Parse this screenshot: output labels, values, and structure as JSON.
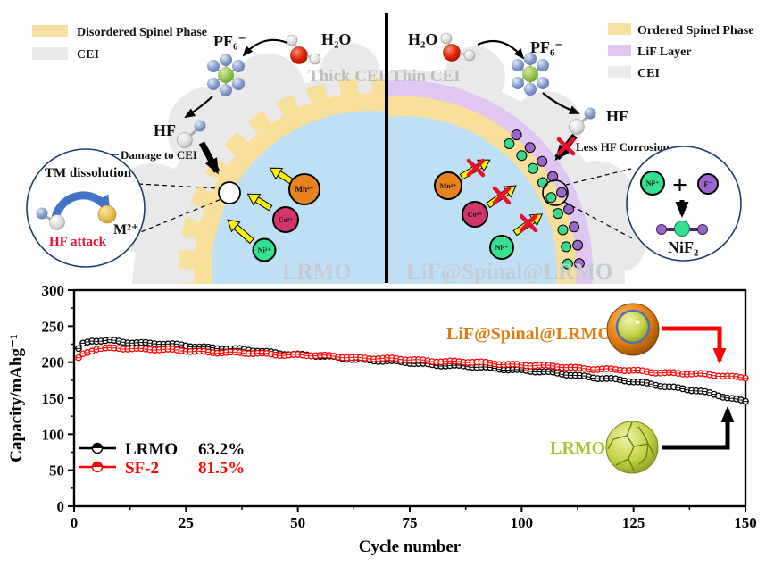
{
  "diagram": {
    "left_legend": {
      "items": [
        {
          "label": "Disordered Spinel Phase",
          "color": "#F7E1A0"
        },
        {
          "label": "CEI",
          "color": "#EAEAEA"
        }
      ]
    },
    "right_legend": {
      "items": [
        {
          "label": "Ordered Spinel Phase",
          "color": "#F7E1A0"
        },
        {
          "label": "LiF Layer",
          "color": "#DFC7F2"
        },
        {
          "label": "CEI",
          "color": "#EAEAEA"
        }
      ]
    },
    "labels": {
      "pf6": "PF₆⁻",
      "h2o": "H₂O",
      "hf": "HF",
      "thick_cei": "Thick CEI",
      "thin_cei": "Thin CEI",
      "damage_to_cei": "Damage to CEI",
      "tm_dissolution": "TM dissolution",
      "hf_attack": "HF attack",
      "m2plus": "M²⁺",
      "less_hf_corrosion": "Less HF Corrosion",
      "core_left": "LRMO",
      "core_right": "LiF@Spinal@LRMO",
      "plus": "+",
      "nif2": "NiF₂"
    },
    "ions": {
      "mn": "Mn⁴⁺",
      "co": "Co³⁺",
      "ni": "Ni²⁺",
      "f": "F⁻"
    },
    "colors": {
      "core_blue": "#BFE0F4",
      "mn_orange": "#E8821E",
      "co_pink": "#D2356A",
      "ni_green": "#35E08E",
      "f_purple": "#9966CC"
    }
  },
  "chart_data": {
    "type": "line",
    "xlabel": "Cycle number",
    "ylabel": "Capacity/mAhg⁻¹",
    "xlim": [
      0,
      150
    ],
    "ylim": [
      0,
      300
    ],
    "xticks": [
      0,
      25,
      50,
      75,
      100,
      125,
      150
    ],
    "yticks": [
      0,
      50,
      100,
      150,
      200,
      250,
      300
    ],
    "grid": false,
    "legend_position": "lower-left",
    "series": [
      {
        "name": "LRMO",
        "retention": "63.2%",
        "color": "#000000",
        "marker": "half-open-circle",
        "points": [
          [
            1,
            218
          ],
          [
            2,
            225
          ],
          [
            4,
            229
          ],
          [
            8,
            230
          ],
          [
            15,
            227
          ],
          [
            25,
            223
          ],
          [
            40,
            216
          ],
          [
            55,
            208
          ],
          [
            70,
            201
          ],
          [
            85,
            195
          ],
          [
            100,
            189
          ],
          [
            115,
            180
          ],
          [
            130,
            169
          ],
          [
            140,
            159
          ],
          [
            150,
            146
          ]
        ]
      },
      {
        "name": "SF-2",
        "retention": "81.5%",
        "color": "#FF0000",
        "marker": "half-open-circle",
        "points": [
          [
            1,
            205
          ],
          [
            2,
            211
          ],
          [
            5,
            218
          ],
          [
            10,
            220
          ],
          [
            20,
            217
          ],
          [
            35,
            213
          ],
          [
            50,
            210
          ],
          [
            65,
            206
          ],
          [
            80,
            202
          ],
          [
            95,
            198
          ],
          [
            110,
            193
          ],
          [
            125,
            188
          ],
          [
            140,
            183
          ],
          [
            150,
            179
          ]
        ]
      }
    ],
    "annotations": [
      {
        "label": "LiF@Spinal@LRMO",
        "color": "#E07B10"
      },
      {
        "label": "LRMO",
        "color": "#AFC234"
      }
    ]
  }
}
